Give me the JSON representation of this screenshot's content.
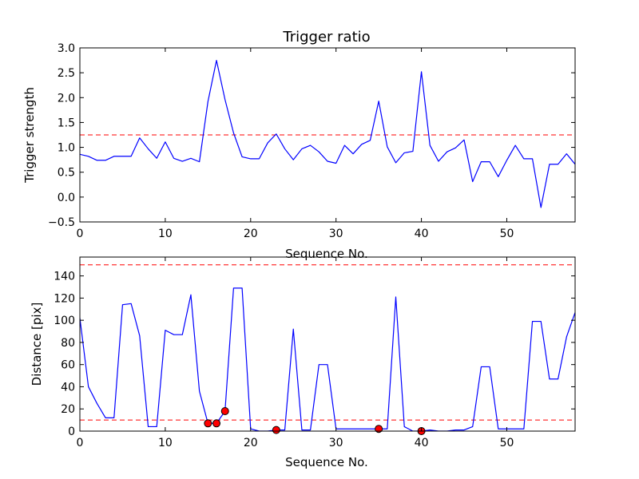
{
  "chart_data": [
    {
      "type": "line",
      "title": "Trigger ratio",
      "xlabel": "Sequence No.",
      "ylabel": "Trigger strength",
      "xlim": [
        0,
        58
      ],
      "ylim": [
        -0.5,
        3.0
      ],
      "xticks": [
        0,
        10,
        20,
        30,
        40,
        50
      ],
      "xtick_labels": [
        "0",
        "10",
        "20",
        "30",
        "40",
        "50"
      ],
      "yticks": [
        -0.5,
        0.0,
        0.5,
        1.0,
        1.5,
        2.0,
        2.5,
        3.0
      ],
      "ytick_labels": [
        "−0.5",
        "0.0",
        "0.5",
        "1.0",
        "1.5",
        "2.0",
        "2.5",
        "3.0"
      ],
      "grid": false,
      "series": [
        {
          "color": "#0000ff",
          "x": [
            0,
            1,
            2,
            3,
            4,
            5,
            6,
            7,
            8,
            9,
            10,
            11,
            12,
            13,
            14,
            15,
            16,
            17,
            18,
            19,
            20,
            21,
            22,
            23,
            24,
            25,
            26,
            27,
            28,
            29,
            30,
            31,
            32,
            33,
            34,
            35,
            36,
            37,
            38,
            39,
            40,
            41,
            42,
            43,
            44,
            45,
            46,
            47,
            48,
            49,
            50,
            51,
            52,
            53,
            54,
            55,
            56,
            57,
            58
          ],
          "values": [
            0.86,
            0.82,
            0.74,
            0.74,
            0.82,
            0.82,
            0.82,
            1.19,
            0.97,
            0.78,
            1.11,
            0.78,
            0.72,
            0.78,
            0.71,
            1.92,
            2.75,
            1.96,
            1.29,
            0.81,
            0.77,
            0.77,
            1.09,
            1.27,
            0.97,
            0.75,
            0.97,
            1.04,
            0.91,
            0.72,
            0.68,
            1.04,
            0.87,
            1.06,
            1.14,
            1.93,
            1.01,
            0.69,
            0.89,
            0.92,
            2.52,
            1.04,
            0.72,
            0.91,
            0.99,
            1.15,
            0.31,
            0.71,
            0.71,
            0.41,
            0.74,
            1.04,
            0.77,
            0.77,
            -0.21,
            0.66,
            0.66,
            0.87,
            0.66
          ]
        }
      ],
      "hlines": [
        {
          "y": 1.25,
          "color": "#ff0000",
          "style": "dashed"
        }
      ]
    },
    {
      "type": "line",
      "title": "",
      "xlabel": "Sequence No.",
      "ylabel": "Distance [pix]",
      "xlim": [
        0,
        58
      ],
      "ylim": [
        0,
        157
      ],
      "xticks": [
        0,
        10,
        20,
        30,
        40,
        50
      ],
      "xtick_labels": [
        "0",
        "10",
        "20",
        "30",
        "40",
        "50"
      ],
      "yticks": [
        0,
        20,
        40,
        60,
        80,
        100,
        120,
        140
      ],
      "ytick_labels": [
        "0",
        "20",
        "40",
        "60",
        "80",
        "100",
        "120",
        "140"
      ],
      "grid": false,
      "series": [
        {
          "color": "#0000ff",
          "x": [
            0,
            1,
            2,
            3,
            4,
            5,
            6,
            7,
            8,
            9,
            10,
            11,
            12,
            13,
            14,
            15,
            16,
            17,
            18,
            19,
            20,
            21,
            22,
            23,
            24,
            25,
            26,
            27,
            28,
            29,
            30,
            31,
            32,
            33,
            34,
            35,
            36,
            37,
            38,
            39,
            40,
            41,
            42,
            43,
            44,
            45,
            46,
            47,
            48,
            49,
            50,
            51,
            52,
            53,
            54,
            55,
            56,
            57,
            58
          ],
          "values": [
            102,
            40,
            25,
            12,
            12,
            114,
            115,
            86,
            4,
            4,
            91,
            87,
            87,
            123,
            36,
            7,
            7,
            18,
            129,
            129,
            2,
            0,
            0,
            1,
            1,
            92,
            1,
            1,
            60,
            60,
            2,
            2,
            2,
            2,
            2,
            2,
            2,
            121,
            4,
            0,
            0,
            1,
            0,
            0,
            1,
            1,
            4,
            58,
            58,
            2,
            2,
            2,
            2,
            99,
            99,
            47,
            47,
            85,
            107
          ]
        }
      ],
      "markers": {
        "color": "#ff0000",
        "x": [
          15,
          16,
          17,
          23,
          35,
          40
        ],
        "y": [
          7,
          7,
          18,
          1,
          2,
          0
        ]
      },
      "hlines": [
        {
          "y": 150,
          "color": "#ff0000",
          "style": "dashed"
        },
        {
          "y": 10,
          "color": "#ff0000",
          "style": "dashed"
        }
      ]
    }
  ]
}
